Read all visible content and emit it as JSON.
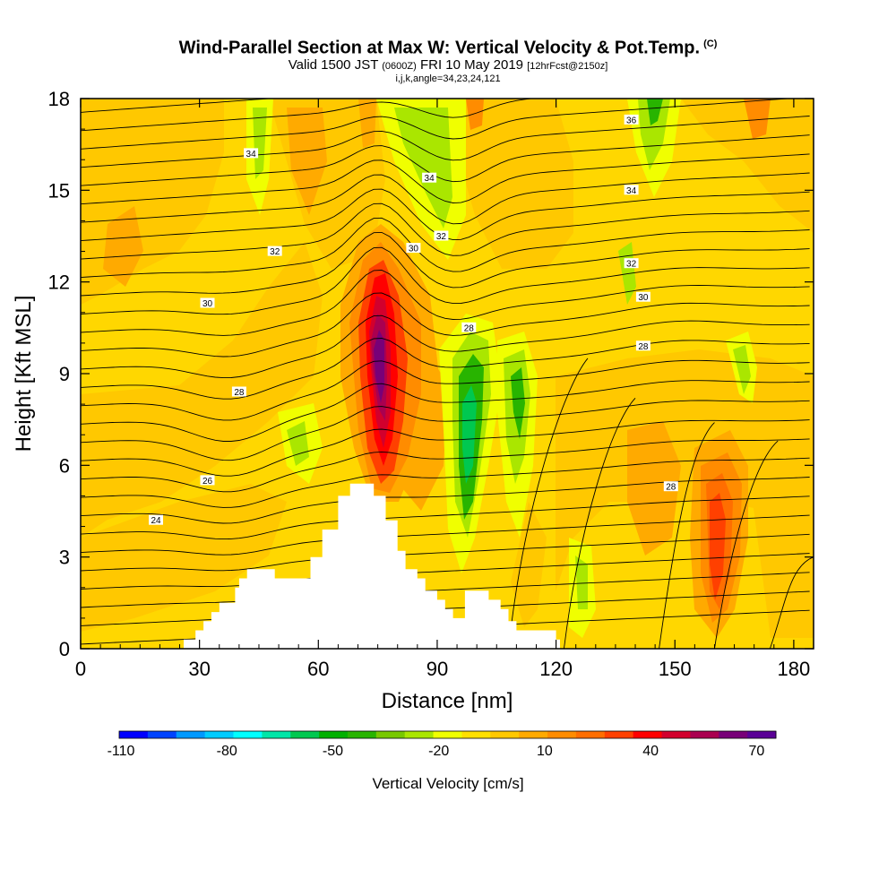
{
  "header": {
    "title": "Wind-Parallel Section at Max W: Vertical Velocity & Pot.Temp.",
    "copyright": "(C)",
    "valid_prefix": "Valid 1500 JST",
    "valid_utc": "(0600Z)",
    "valid_date": "FRI 10 May 2019",
    "forecast": "[12hrFcst@2150z]",
    "params": "i,j,k,angle=34,23,24,121"
  },
  "chart_data": {
    "type": "heatmap",
    "xlabel": "Distance [nm]",
    "ylabel": "Height [Kft MSL]",
    "xlim": [
      0,
      185
    ],
    "ylim": [
      0,
      18
    ],
    "x_ticks": [
      "0",
      "30",
      "60",
      "90",
      "120",
      "150",
      "180"
    ],
    "y_ticks": [
      "0",
      "3",
      "6",
      "9",
      "12",
      "15",
      "18"
    ],
    "grid": false,
    "background_color": "#ffd700",
    "colorbar": {
      "title": "Vertical Velocity [cm/s]",
      "tick_labels": [
        "-110",
        "-80",
        "-50",
        "-20",
        "10",
        "40",
        "70"
      ],
      "colors": [
        "#0000ff",
        "#0044ff",
        "#0099ff",
        "#00ccff",
        "#00ffff",
        "#00e6a8",
        "#00c850",
        "#00b000",
        "#28b400",
        "#78c800",
        "#aae600",
        "#f0ff00",
        "#ffe000",
        "#ffc800",
        "#ffaa00",
        "#ff8c00",
        "#ff6e00",
        "#ff4000",
        "#ff0000",
        "#d2002d",
        "#aa0050",
        "#780078",
        "#5a0096"
      ]
    },
    "terrain_nm_kft": [
      [
        26,
        0
      ],
      [
        26,
        0.3
      ],
      [
        29,
        0.3
      ],
      [
        29,
        0.6
      ],
      [
        31,
        0.6
      ],
      [
        31,
        0.9
      ],
      [
        33,
        0.9
      ],
      [
        33,
        1.2
      ],
      [
        35,
        1.2
      ],
      [
        35,
        1.5
      ],
      [
        39,
        1.5
      ],
      [
        39,
        2.0
      ],
      [
        40,
        2.0
      ],
      [
        40,
        2.3
      ],
      [
        42,
        2.3
      ],
      [
        42,
        2.6
      ],
      [
        49,
        2.6
      ],
      [
        49,
        2.3
      ],
      [
        58,
        2.3
      ],
      [
        58,
        3.0
      ],
      [
        61,
        3.0
      ],
      [
        61,
        3.9
      ],
      [
        65,
        3.9
      ],
      [
        65,
        5.0
      ],
      [
        68,
        5.0
      ],
      [
        68,
        5.4
      ],
      [
        74,
        5.4
      ],
      [
        74,
        5.0
      ],
      [
        77,
        5.0
      ],
      [
        77,
        4.2
      ],
      [
        80,
        4.2
      ],
      [
        80,
        3.2
      ],
      [
        82,
        3.2
      ],
      [
        82,
        2.6
      ],
      [
        85,
        2.6
      ],
      [
        85,
        2.3
      ],
      [
        87,
        2.3
      ],
      [
        87,
        1.9
      ],
      [
        90,
        1.9
      ],
      [
        90,
        1.6
      ],
      [
        92,
        1.6
      ],
      [
        92,
        1.3
      ],
      [
        94,
        1.3
      ],
      [
        94,
        1.0
      ],
      [
        97,
        1.0
      ],
      [
        97,
        1.9
      ],
      [
        103,
        1.9
      ],
      [
        103,
        1.6
      ],
      [
        106,
        1.6
      ],
      [
        106,
        1.3
      ],
      [
        108,
        1.3
      ],
      [
        108,
        0.9
      ],
      [
        110,
        0.9
      ],
      [
        110,
        0.6
      ],
      [
        120,
        0.6
      ],
      [
        120,
        0.3
      ],
      [
        121,
        0.3
      ],
      [
        121,
        0
      ]
    ],
    "contour_labels": [
      {
        "text": "24",
        "x": 19,
        "y": 4.2
      },
      {
        "text": "26",
        "x": 32,
        "y": 5.5
      },
      {
        "text": "28",
        "x": 40,
        "y": 8.4
      },
      {
        "text": "30",
        "x": 32,
        "y": 11.3
      },
      {
        "text": "32",
        "x": 49,
        "y": 13.0
      },
      {
        "text": "34",
        "x": 43,
        "y": 16.2
      },
      {
        "text": "30",
        "x": 84,
        "y": 13.1
      },
      {
        "text": "32",
        "x": 91,
        "y": 13.5
      },
      {
        "text": "34",
        "x": 88,
        "y": 15.4
      },
      {
        "text": "28",
        "x": 98,
        "y": 10.5
      },
      {
        "text": "36",
        "x": 139,
        "y": 17.3
      },
      {
        "text": "34",
        "x": 139,
        "y": 15.0
      },
      {
        "text": "32",
        "x": 139,
        "y": 12.6
      },
      {
        "text": "30",
        "x": 142,
        "y": 11.5
      },
      {
        "text": "28",
        "x": 142,
        "y": 9.9
      },
      {
        "text": "28",
        "x": 149,
        "y": 5.3
      }
    ]
  }
}
